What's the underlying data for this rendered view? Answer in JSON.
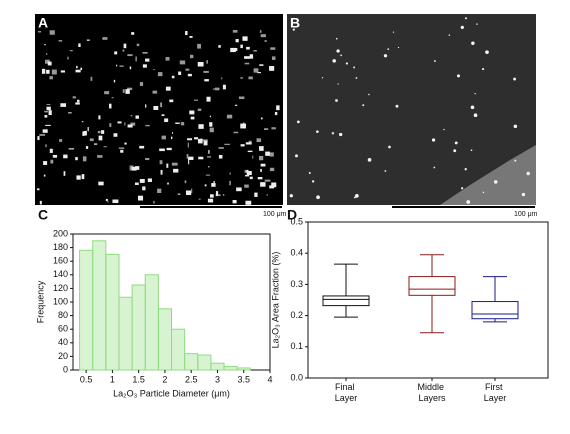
{
  "panels": [
    {
      "label": "A",
      "scale_bar": "100 μm"
    },
    {
      "label": "B",
      "scale_bar": "100 μm"
    },
    {
      "label": "C"
    },
    {
      "label": "D"
    }
  ],
  "chart_data": [
    {
      "type": "histogram",
      "x_label": "La₂O₃ Particle Diameter (μm)",
      "y_label": "Frequency",
      "bins": [
        0.375,
        0.625,
        0.875,
        1.125,
        1.375,
        1.625,
        1.875,
        2.125,
        2.375,
        2.625,
        2.875,
        3.125,
        3.375,
        3.625
      ],
      "values": [
        176,
        190,
        170,
        107,
        125,
        140,
        90,
        60,
        24,
        22,
        10,
        5,
        3
      ],
      "color": "#8fdc7f",
      "xlim": [
        0.25,
        4.0
      ],
      "xticks": [
        0.5,
        1.0,
        1.5,
        2.0,
        2.5,
        3.0,
        3.5,
        4.0
      ],
      "ylim": [
        0,
        200
      ],
      "yticks": [
        0,
        20,
        40,
        60,
        80,
        100,
        120,
        140,
        160,
        180,
        200
      ]
    },
    {
      "type": "box",
      "y_label": "La₂O₃ Area Fraction (%)",
      "categories": [
        "Final Layer",
        "Middle Layers",
        "First Layer"
      ],
      "min": [
        0.195,
        0.145,
        0.18
      ],
      "q1": [
        0.232,
        0.265,
        0.19
      ],
      "median": [
        0.252,
        0.285,
        0.205
      ],
      "q3": [
        0.263,
        0.325,
        0.245
      ],
      "max": [
        0.365,
        0.395,
        0.325
      ],
      "colors": [
        "#111111",
        "#8b1a1a",
        "#1a1a8b"
      ],
      "ylim": [
        0,
        0.5
      ],
      "yticks": [
        {
          "value": 0,
          "label": "0.0"
        },
        0.1,
        0.2,
        0.3,
        0.4,
        0.5
      ]
    }
  ]
}
